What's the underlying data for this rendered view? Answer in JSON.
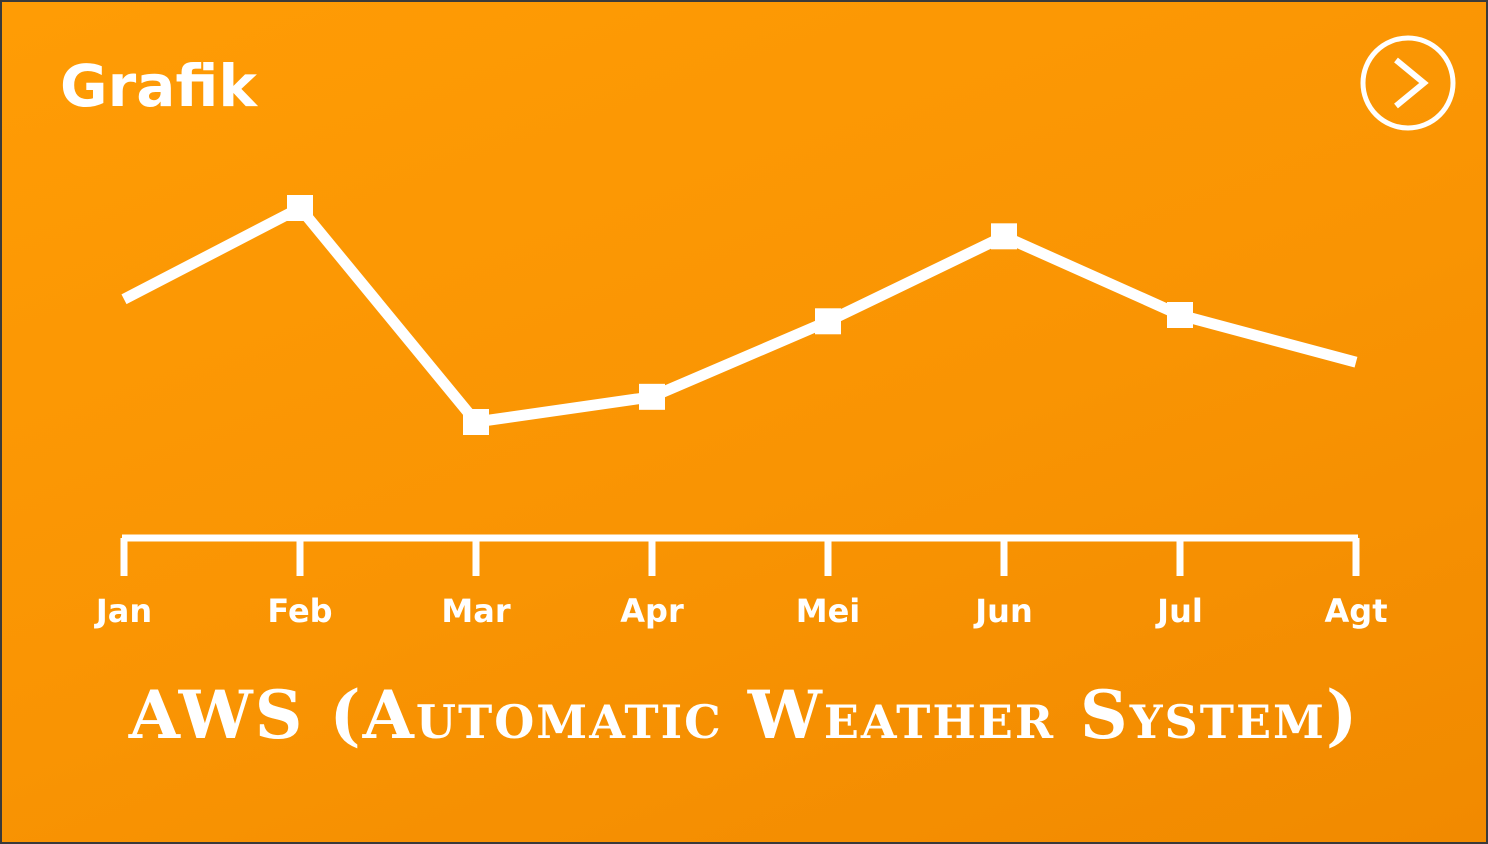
{
  "page": {
    "title": "Grafik",
    "subtitle": "AWS (Automatic Weather System)"
  },
  "navigation": {
    "next_icon": "chevron-right-circle-icon"
  },
  "colors": {
    "background": "#f99403",
    "foreground": "#ffffff"
  },
  "chart_data": {
    "type": "line",
    "title": "",
    "xlabel": "",
    "ylabel": "",
    "categories": [
      "Jan",
      "Feb",
      "Mar",
      "Apr",
      "Mei",
      "Jun",
      "Jul",
      "Agt"
    ],
    "series": [
      {
        "values": [
          5.0,
          7.9,
          1.1,
          1.9,
          4.3,
          7.0,
          4.5,
          3.0
        ],
        "markers": [
          false,
          true,
          true,
          true,
          true,
          true,
          true,
          false
        ]
      }
    ],
    "y_axis_visible": false,
    "grid": false,
    "legend": "none"
  }
}
